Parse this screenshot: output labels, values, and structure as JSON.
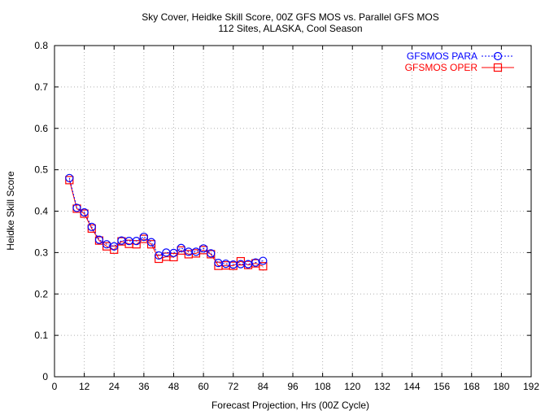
{
  "chart_data": {
    "type": "line",
    "title": "Sky Cover, Heidke Skill Score, 00Z GFS MOS vs. Parallel GFS MOS",
    "subtitle": "112 Sites, ALASKA, Cool Season",
    "xlabel": "Forecast Projection, Hrs (00Z Cycle)",
    "ylabel": "Heidke Skill Score",
    "xlim": [
      0,
      192
    ],
    "ylim": [
      0,
      0.8
    ],
    "xticks": [
      "0",
      "12",
      "24",
      "36",
      "48",
      "60",
      "72",
      "84",
      "96",
      "108",
      "120",
      "132",
      "144",
      "156",
      "168",
      "180",
      "192"
    ],
    "yticks": [
      "0",
      "0.1",
      "0.2",
      "0.3",
      "0.4",
      "0.5",
      "0.6",
      "0.7",
      "0.8"
    ],
    "grid": true,
    "legend_position": "top-right",
    "x": [
      6,
      9,
      12,
      15,
      18,
      21,
      24,
      27,
      30,
      33,
      36,
      39,
      42,
      45,
      48,
      51,
      54,
      57,
      60,
      63,
      66,
      69,
      72,
      75,
      78,
      81,
      84
    ],
    "series": [
      {
        "name": "GFSMOS PARA",
        "color": "#0000ff",
        "line_style": "dotted",
        "marker": "circle",
        "values": [
          0.48,
          0.408,
          0.397,
          0.362,
          0.331,
          0.32,
          0.315,
          0.329,
          0.328,
          0.328,
          0.338,
          0.325,
          0.293,
          0.3,
          0.299,
          0.311,
          0.302,
          0.302,
          0.31,
          0.298,
          0.275,
          0.273,
          0.271,
          0.272,
          0.272,
          0.276,
          0.28
        ]
      },
      {
        "name": "GFSMOS OPER",
        "color": "#ff0000",
        "line_style": "solid",
        "marker": "square",
        "values": [
          0.475,
          0.406,
          0.394,
          0.358,
          0.329,
          0.315,
          0.307,
          0.327,
          0.321,
          0.32,
          0.333,
          0.32,
          0.285,
          0.29,
          0.289,
          0.305,
          0.296,
          0.298,
          0.306,
          0.296,
          0.268,
          0.269,
          0.268,
          0.279,
          0.27,
          0.274,
          0.267
        ]
      }
    ]
  }
}
